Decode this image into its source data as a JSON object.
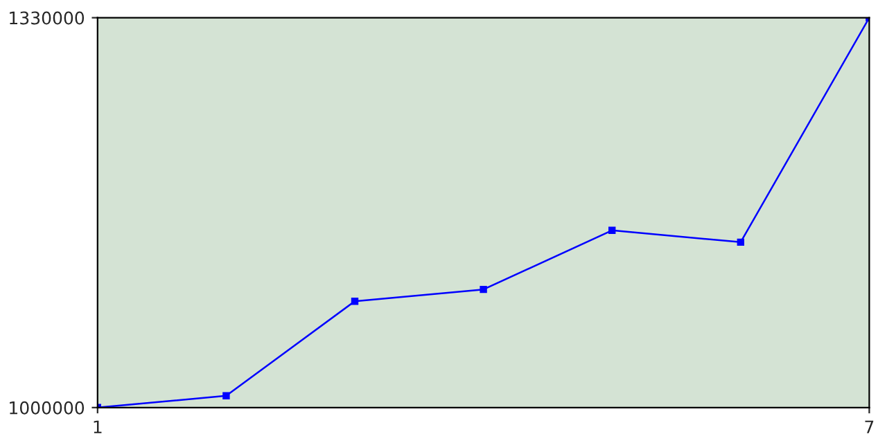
{
  "chart_data": {
    "type": "line",
    "x": [
      1,
      2,
      3,
      4,
      5,
      6,
      7
    ],
    "series": [
      {
        "color": "#0000ff",
        "values": [
          1000000,
          1010000,
          1090000,
          1100000,
          1150000,
          1140000,
          1330000
        ]
      }
    ],
    "xlim": [
      1,
      7
    ],
    "xticks": [
      1,
      7
    ],
    "ylim": [
      1000000,
      1330000
    ],
    "yticks": [
      1000000,
      1330000
    ],
    "marker": "square",
    "line_style": "solid"
  }
}
